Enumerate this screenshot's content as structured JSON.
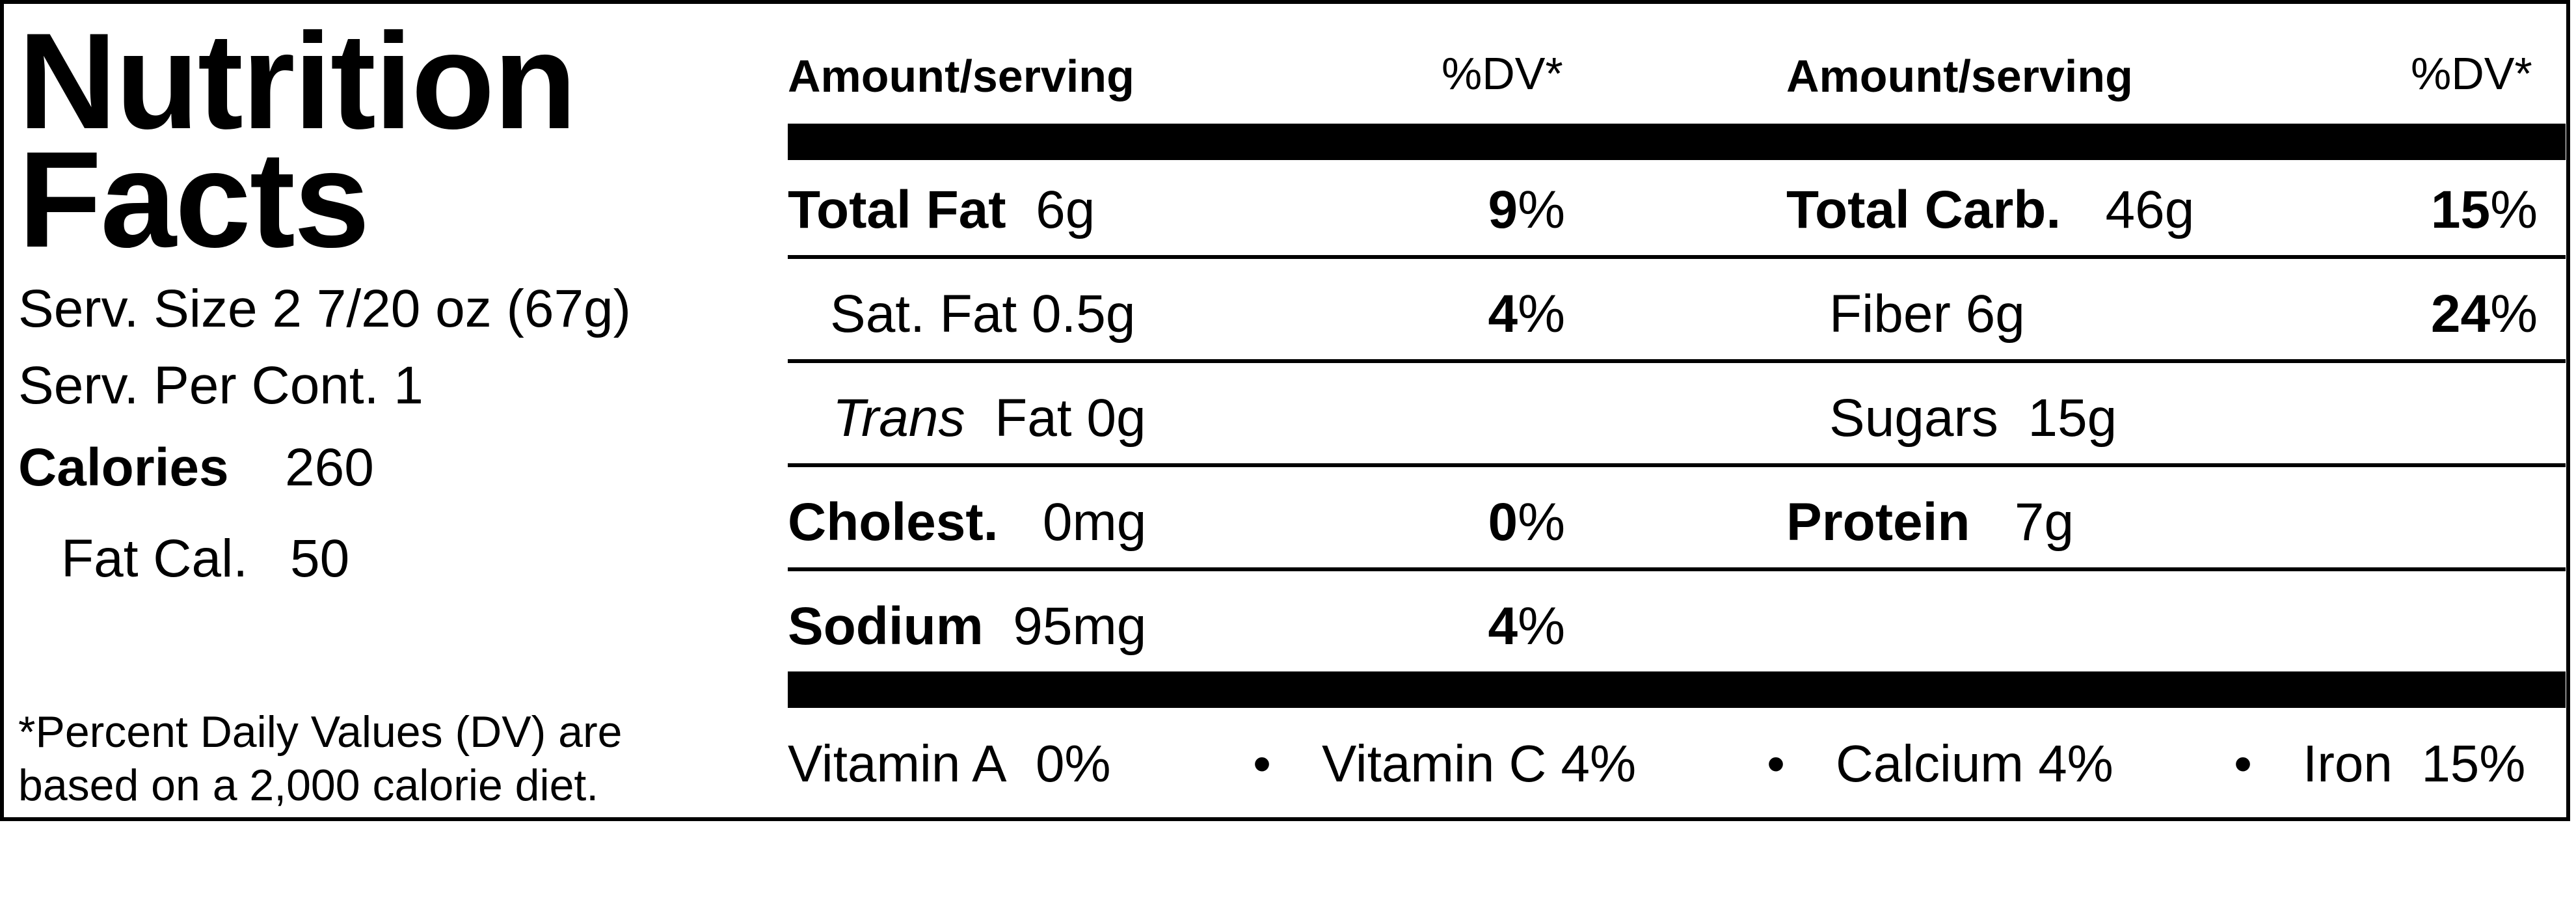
{
  "title_line1": "Nutrition",
  "title_line2": "Facts",
  "serving_size": "Serv. Size 2 7/20 oz  (67g)",
  "servings_per_container": "Serv. Per Cont. 1",
  "calories": {
    "label": "Calories",
    "value": "260"
  },
  "fat_calories": {
    "label": "Fat Cal.",
    "value": "50"
  },
  "footnote_line1": "*Percent Daily Values (DV) are",
  "footnote_line2": "based on a 2,000 calorie diet.",
  "headers": {
    "amount_label": "Amount/serving",
    "dv_label": "%DV*"
  },
  "left_nutrients": [
    {
      "name": "Total Fat",
      "amount": "6g",
      "dv": "9",
      "unit": "%"
    },
    {
      "name": "Sat. Fat",
      "amount": "0.5g",
      "dv": "4",
      "unit": "%"
    },
    {
      "name": "Trans",
      "amount": "Fat 0g",
      "dv": "",
      "unit": ""
    },
    {
      "name": "Cholest.",
      "amount": "0mg",
      "dv": "0",
      "unit": "%"
    },
    {
      "name": "Sodium",
      "amount": "95mg",
      "dv": "4",
      "unit": "%"
    }
  ],
  "right_nutrients": [
    {
      "name": "Total Carb.",
      "amount": "46g",
      "dv": "15",
      "unit": "%"
    },
    {
      "name": "Fiber",
      "amount": "6g",
      "dv": "24",
      "unit": "%"
    },
    {
      "name": "Sugars",
      "amount": "15g",
      "dv": "",
      "unit": ""
    },
    {
      "name": "Protein",
      "amount": "7g",
      "dv": "",
      "unit": ""
    }
  ],
  "vitamins": [
    {
      "label": "Vitamin A",
      "value": "0%"
    },
    {
      "label": "Vitamin C",
      "value": "4%"
    },
    {
      "label": "Calcium",
      "value": "4%"
    },
    {
      "label": "Iron",
      "value": "15%"
    }
  ],
  "bullet": "•"
}
